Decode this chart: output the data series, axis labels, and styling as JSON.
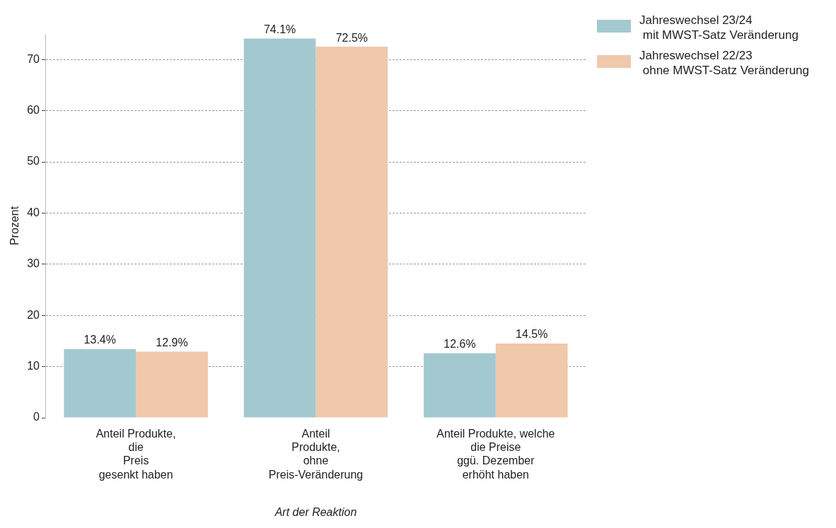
{
  "chart_data": {
    "type": "bar",
    "xlabel": "Art der Reaktion",
    "ylabel": "Prozent",
    "categories": [
      "Anteil Produkte,\ndie\nPreis\ngesenkt haben",
      "Anteil\nProdukte,\nohne\nPreis-Veränderung",
      "Anteil Produkte, welche\ndie Preise\nggü. Dezember\nerhöht haben"
    ],
    "series": [
      {
        "name": "Jahreswechsel 23/24\n mit MWST-Satz Veränderung",
        "color": "#a3c9d0",
        "values": [
          13.4,
          74.1,
          12.6
        ],
        "value_labels": [
          "13.4%",
          "74.1%",
          "12.6%"
        ]
      },
      {
        "name": "Jahreswechsel 22/23\n ohne MWST-Satz Veränderung",
        "color": "#f0c8ab",
        "values": [
          12.9,
          72.5,
          14.5
        ],
        "value_labels": [
          "12.9%",
          "72.5%",
          "14.5%"
        ]
      }
    ],
    "ylim": [
      0,
      75
    ],
    "yticks": [
      0,
      10,
      20,
      30,
      40,
      50,
      60,
      70
    ],
    "grid": "y",
    "legend": "top right"
  }
}
